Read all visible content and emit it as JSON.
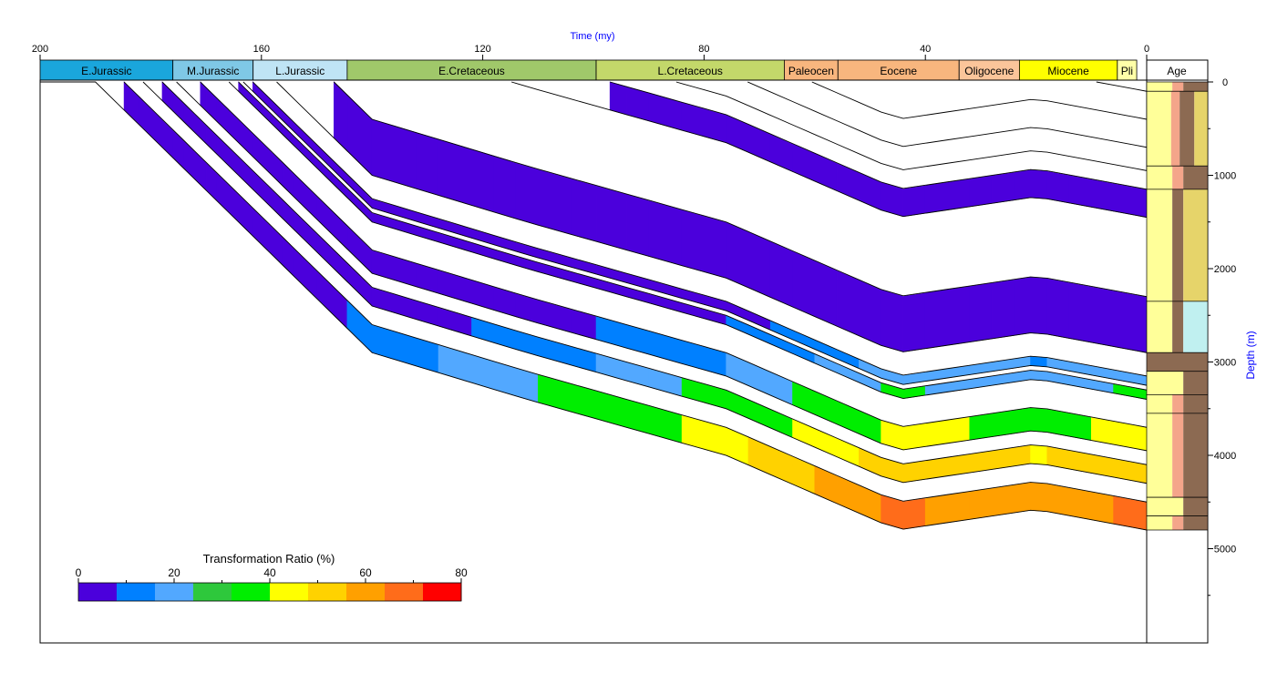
{
  "chart_data": {
    "type": "area",
    "title": "",
    "xlabel": "Time (my)",
    "ylabel": "Depth (m)",
    "xlim": [
      200,
      0
    ],
    "ylim": [
      0,
      5800
    ],
    "x_ticks": [
      "200",
      "160",
      "120",
      "80",
      "40",
      "0"
    ],
    "y_ticks": [
      "0",
      "1000",
      "2000",
      "3000",
      "4000",
      "5000"
    ],
    "age_column_label": "Age",
    "periods": [
      {
        "name": "E.Jurassic",
        "start": 200,
        "end": 176,
        "color": "#1aa6dc"
      },
      {
        "name": "M.Jurassic",
        "start": 176,
        "end": 161.5,
        "color": "#7fc8e6"
      },
      {
        "name": "L.Jurassic",
        "start": 161.5,
        "end": 144.5,
        "color": "#bfe4f5"
      },
      {
        "name": "E.Cretaceous",
        "start": 144.5,
        "end": 99.5,
        "color": "#a0c86a"
      },
      {
        "name": "L.Cretaceous",
        "start": 99.5,
        "end": 65.5,
        "color": "#c3d86a"
      },
      {
        "name": "Paleocen",
        "start": 65.5,
        "end": 55.8,
        "color": "#f8b67e"
      },
      {
        "name": "Eocene",
        "start": 55.8,
        "end": 33.9,
        "color": "#f8b67e"
      },
      {
        "name": "Oligocene",
        "start": 33.9,
        "end": 23,
        "color": "#fbc59a"
      },
      {
        "name": "Miocene",
        "start": 23,
        "end": 5.3,
        "color": "#ffff00"
      },
      {
        "name": "Pli",
        "start": 5.3,
        "end": 1.8,
        "color": "#ffffa8"
      }
    ],
    "legend": {
      "title": "Transformation Ratio (%)",
      "tick_labels": [
        "0",
        "20",
        "40",
        "60",
        "80"
      ],
      "range": [
        0,
        80
      ],
      "colors": [
        "#4b00dc",
        "#0080ff",
        "#52a8ff",
        "#2ec83c",
        "#00ee00",
        "#ffff00",
        "#ffd200",
        "#ffa000",
        "#ff6c1a",
        "#ff0000"
      ]
    },
    "time_nodes": [
      190,
      186,
      184,
      182,
      180,
      178,
      176,
      174,
      172,
      170,
      168,
      166,
      164,
      161.5,
      158,
      156,
      154,
      150,
      144.5,
      140,
      136,
      132,
      128,
      122,
      118,
      114,
      110,
      108,
      104,
      99.5,
      94,
      90,
      84,
      80,
      76,
      72,
      68,
      64,
      60,
      56,
      52,
      48,
      44,
      40,
      36,
      32,
      28,
      24,
      21,
      18,
      14,
      10,
      6,
      2,
      0
    ],
    "horizons": []
  }
}
